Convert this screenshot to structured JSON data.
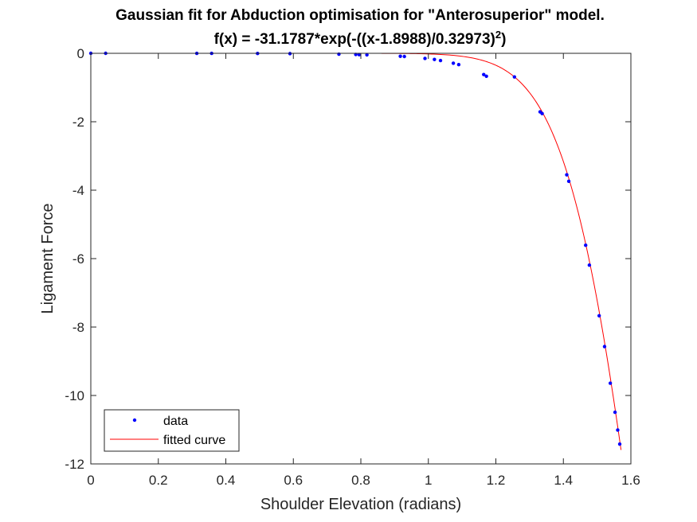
{
  "chart_data": {
    "type": "scatter",
    "title": "Gaussian fit for Abduction optimisation for \"Anterosuperior\" model.",
    "subtitle_prefix": "f(x) = -31.1787*exp(-((x-1.8988)/0.32973)",
    "subtitle_superscript": "2",
    "subtitle_suffix": ")",
    "xlabel": "Shoulder Elevation (radians)",
    "ylabel": "Ligament Force",
    "xlim": [
      0,
      1.6
    ],
    "ylim": [
      -12,
      0
    ],
    "xticks": [
      "0",
      "0.2",
      "0.4",
      "0.6",
      "0.8",
      "1",
      "1.2",
      "1.4",
      "1.6"
    ],
    "xtick_values": [
      0,
      0.2,
      0.4,
      0.6,
      0.8,
      1,
      1.2,
      1.4,
      1.6
    ],
    "yticks": [
      "0",
      "-2",
      "-4",
      "-6",
      "-8",
      "-10",
      "-12"
    ],
    "ytick_values": [
      0,
      -2,
      -4,
      -6,
      -8,
      -10,
      -12
    ],
    "grid": false,
    "legend_position": "bottom-left",
    "fit": {
      "a": -31.1787,
      "b": 1.8988,
      "c": 0.32973,
      "x_range": [
        0,
        1.5708
      ]
    },
    "series": [
      {
        "name": "data",
        "kind": "points",
        "color": "#0000ff",
        "x": [
          0,
          0.044,
          0.314,
          0.358,
          0.494,
          0.59,
          0.735,
          0.785,
          0.795,
          0.818,
          0.917,
          0.929,
          0.99,
          1.018,
          1.036,
          1.074,
          1.09,
          1.164,
          1.172,
          1.255,
          1.331,
          1.337,
          1.41,
          1.416,
          1.466,
          1.477,
          1.506,
          1.522,
          1.539,
          1.553,
          1.561,
          1.567
        ],
        "y": [
          0,
          0,
          -0.001,
          -0.002,
          -0.005,
          -0.009,
          -0.024,
          -0.035,
          -0.038,
          -0.045,
          -0.087,
          -0.093,
          -0.15,
          -0.18,
          -0.21,
          -0.29,
          -0.33,
          -0.62,
          -0.67,
          -0.69,
          -1.71,
          -1.76,
          -3.55,
          -3.74,
          -5.61,
          -6.19,
          -7.67,
          -8.57,
          -9.64,
          -10.49,
          -11.01,
          -11.42
        ]
      },
      {
        "name": "fitted curve",
        "kind": "line",
        "color": "#ff0000"
      }
    ]
  }
}
